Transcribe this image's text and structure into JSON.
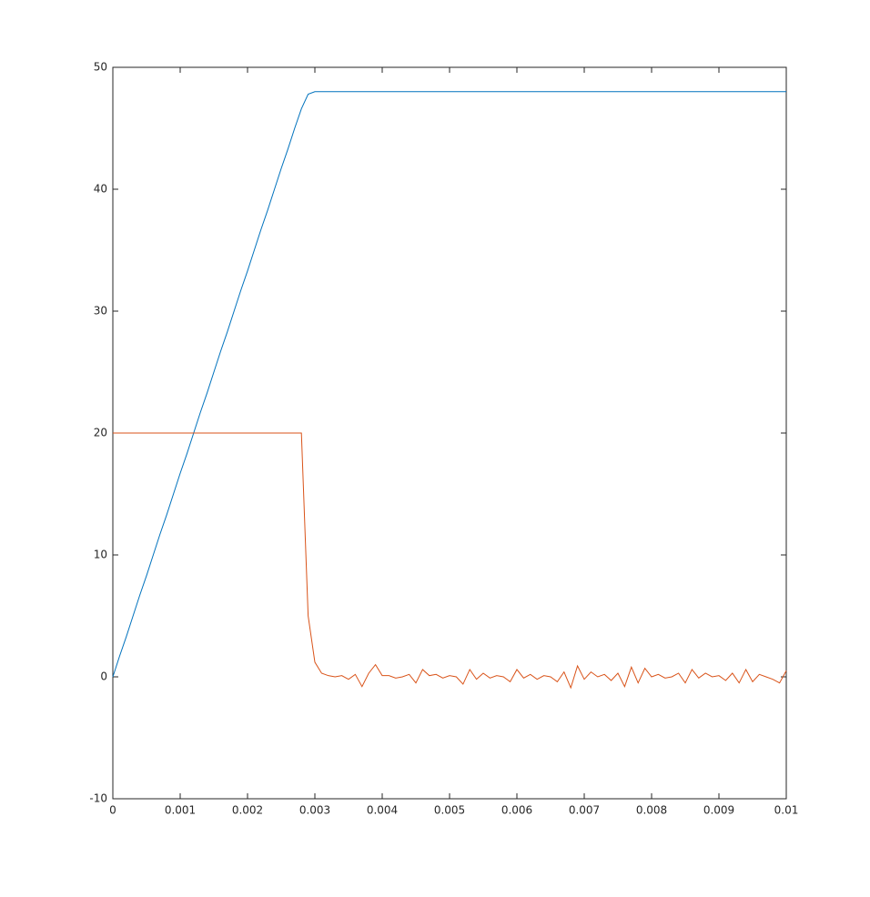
{
  "chart_data": {
    "type": "line",
    "x": [
      0,
      0.0001,
      0.0002,
      0.0003,
      0.0004,
      0.0005,
      0.0006,
      0.0007,
      0.0008,
      0.0009,
      0.001,
      0.0011,
      0.0012,
      0.0013,
      0.0014,
      0.0015,
      0.0016,
      0.0017,
      0.0018,
      0.0019,
      0.002,
      0.0021,
      0.0022,
      0.0023,
      0.0024,
      0.0025,
      0.0026,
      0.0027,
      0.0028,
      0.0029,
      0.003,
      0.0031,
      0.0032,
      0.0033,
      0.0034,
      0.0035,
      0.0036,
      0.0037,
      0.0038,
      0.0039,
      0.004,
      0.0041,
      0.0042,
      0.0043,
      0.0044,
      0.0045,
      0.0046,
      0.0047,
      0.0048,
      0.0049,
      0.005,
      0.0051,
      0.0052,
      0.0053,
      0.0054,
      0.0055,
      0.0056,
      0.0057,
      0.0058,
      0.0059,
      0.006,
      0.0061,
      0.0062,
      0.0063,
      0.0064,
      0.0065,
      0.0066,
      0.0067,
      0.0068,
      0.0069,
      0.007,
      0.0071,
      0.0072,
      0.0073,
      0.0074,
      0.0075,
      0.0076,
      0.0077,
      0.0078,
      0.0079,
      0.008,
      0.0081,
      0.0082,
      0.0083,
      0.0084,
      0.0085,
      0.0086,
      0.0087,
      0.0088,
      0.0089,
      0.009,
      0.0091,
      0.0092,
      0.0093,
      0.0094,
      0.0095,
      0.0096,
      0.0097,
      0.0098,
      0.0099,
      0.01
    ],
    "series": [
      {
        "color": "#0072bd",
        "values": [
          0,
          1.7,
          3.3,
          5,
          6.7,
          8.3,
          10,
          11.7,
          13.3,
          15,
          16.7,
          18.3,
          20,
          21.7,
          23.3,
          25,
          26.7,
          28.3,
          30,
          31.7,
          33.3,
          35,
          36.7,
          38.3,
          40,
          41.7,
          43.3,
          45,
          46.6,
          47.8,
          48,
          48,
          48,
          48,
          48,
          48,
          48,
          48,
          48,
          48,
          48,
          48,
          48,
          48,
          48,
          48,
          48,
          48,
          48,
          48,
          48,
          48,
          48,
          48,
          48,
          48,
          48,
          48,
          48,
          48,
          48,
          48,
          48,
          48,
          48,
          48,
          48,
          48,
          48,
          48,
          48,
          48,
          48,
          48,
          48,
          48,
          48,
          48,
          48,
          48,
          48,
          48,
          48,
          48,
          48,
          48,
          48,
          48,
          48,
          48,
          48,
          48,
          48,
          48,
          48,
          48,
          48,
          48,
          48,
          48,
          48
        ]
      },
      {
        "color": "#d95319",
        "values": [
          20,
          20,
          20,
          20,
          20,
          20,
          20,
          20,
          20,
          20,
          20,
          20,
          20,
          20,
          20,
          20,
          20,
          20,
          20,
          20,
          20,
          20,
          20,
          20,
          20,
          20,
          20,
          20,
          20,
          5,
          1.2,
          0.3,
          0.1,
          0,
          0.1,
          -0.2,
          0.2,
          -0.8,
          0.3,
          1,
          0.1,
          0.1,
          -0.1,
          0,
          0.2,
          -0.5,
          0.6,
          0.1,
          0.2,
          -0.1,
          0.1,
          0,
          -0.6,
          0.6,
          -0.2,
          0.3,
          -0.1,
          0.1,
          0,
          -0.4,
          0.6,
          -0.1,
          0.2,
          -0.2,
          0.1,
          0,
          -0.4,
          0.4,
          -0.9,
          0.9,
          -0.2,
          0.4,
          0,
          0.2,
          -0.3,
          0.3,
          -0.8,
          0.8,
          -0.5,
          0.7,
          0,
          0.2,
          -0.1,
          0,
          0.3,
          -0.5,
          0.6,
          -0.1,
          0.3,
          0,
          0.1,
          -0.3,
          0.3,
          -0.5,
          0.6,
          -0.4,
          0.2,
          0,
          -0.2,
          -0.5,
          0.5
        ]
      }
    ],
    "xlim": [
      0,
      0.01
    ],
    "xticks": [
      0,
      0.001,
      0.002,
      0.003,
      0.004,
      0.005,
      0.006,
      0.007,
      0.008,
      0.009,
      0.01
    ],
    "ylim": [
      -10,
      50
    ],
    "yticks": [
      -10,
      0,
      10,
      20,
      30,
      40,
      50
    ]
  }
}
